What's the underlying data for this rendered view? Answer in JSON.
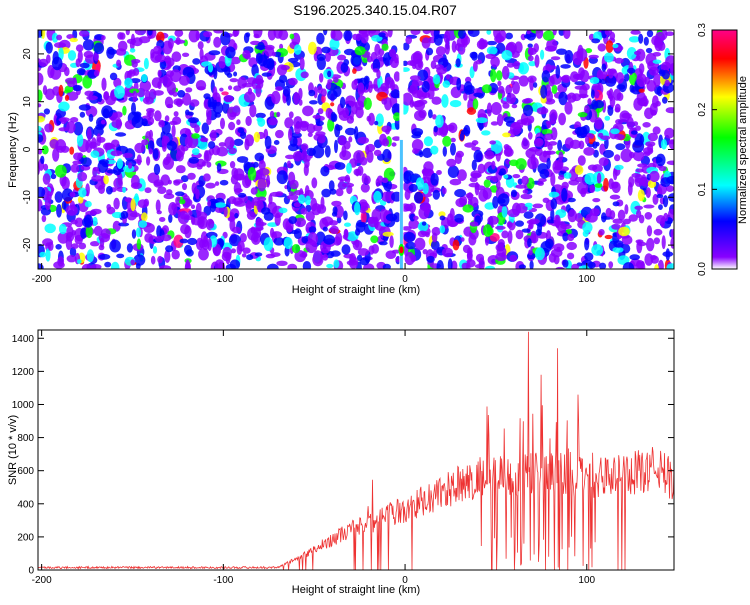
{
  "title": "S196.2025.340.15.04.R07",
  "chart_data": [
    {
      "type": "heatmap",
      "xlabel": "Height of straight line (km)",
      "ylabel": "Frequency (Hz)",
      "xlim": [
        -202,
        148
      ],
      "ylim": [
        -25,
        25
      ],
      "xticks": [
        -200,
        -100,
        0,
        100
      ],
      "xtick_labels": [
        "-200",
        "-100",
        "0",
        "100"
      ],
      "yticks": [
        -20,
        -10,
        0,
        10,
        20
      ],
      "ytick_labels": [
        "-20",
        "-10",
        "0",
        "10",
        "20"
      ],
      "colorbar": {
        "label": "Normalized spectral amplitude",
        "range": [
          0.0,
          0.3
        ],
        "ticks": [
          0.0,
          0.1,
          0.2,
          0.3
        ],
        "tick_labels": [
          "0.0",
          "0.1",
          "0.2",
          "0.3"
        ],
        "colors": [
          "#ffffff",
          "#8800ff",
          "#0000ff",
          "#00ffff",
          "#00ff00",
          "#ffff00",
          "#ff0000",
          "#ff0088"
        ]
      },
      "features": [
        {
          "x": -2,
          "y_range": [
            -25,
            25
          ],
          "description": "bright vertical line near zero height"
        },
        {
          "x": -2,
          "y": -21,
          "value": 0.3
        }
      ]
    },
    {
      "type": "line",
      "xlabel": "Height of straight line (km)",
      "ylabel": "SNR (10 * v/v)",
      "xlim": [
        -202,
        148
      ],
      "ylim": [
        0,
        1450
      ],
      "xticks": [
        -200,
        -100,
        0,
        100
      ],
      "xtick_labels": [
        "-200",
        "-100",
        "0",
        "100"
      ],
      "yticks": [
        0,
        200,
        400,
        600,
        800,
        1000,
        1200,
        1400
      ],
      "ytick_labels": [
        "0",
        "200",
        "400",
        "600",
        "800",
        "1000",
        "1200",
        "1400"
      ],
      "color": "#ee3333",
      "envelope": {
        "x": [
          -202,
          -150,
          -100,
          -70,
          -60,
          -50,
          -40,
          -30,
          -20,
          -10,
          0,
          10,
          20,
          30,
          40,
          50,
          60,
          70,
          80,
          90,
          100,
          110,
          120,
          130,
          140,
          148
        ],
        "baseline": [
          15,
          15,
          15,
          15,
          60,
          110,
          170,
          220,
          250,
          300,
          330,
          380,
          430,
          470,
          500,
          510,
          520,
          530,
          530,
          520,
          510,
          510,
          520,
          540,
          560,
          480
        ]
      },
      "peaks": [
        {
          "x": 68,
          "y": 1440
        },
        {
          "x": 84,
          "y": 1340
        },
        {
          "x": 75,
          "y": 1180
        },
        {
          "x": 95,
          "y": 1060
        },
        {
          "x": 46,
          "y": 820
        },
        {
          "x": -18,
          "y": 545
        }
      ]
    }
  ]
}
